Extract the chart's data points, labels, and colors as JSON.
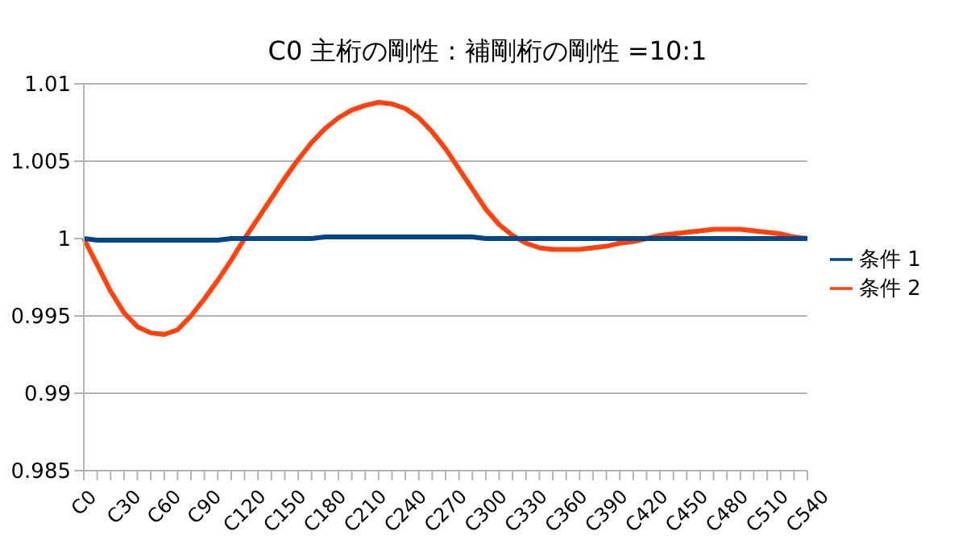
{
  "chart_data": {
    "type": "line",
    "title": "C0  主桁の剛性 : 補剛桁の剛性 =10:1",
    "categories": [
      "C0",
      null,
      null,
      "C30",
      null,
      null,
      "C60",
      null,
      null,
      "C90",
      null,
      null,
      "C120",
      null,
      null,
      "C150",
      null,
      null,
      "C180",
      null,
      null,
      "C210",
      null,
      null,
      "C240",
      null,
      null,
      "C270",
      null,
      null,
      "C300",
      null,
      null,
      "C330",
      null,
      null,
      "C360",
      null,
      null,
      "C390",
      null,
      null,
      "C420",
      null,
      null,
      "C450",
      null,
      null,
      "C480",
      null,
      null,
      "C510",
      null,
      null,
      "C540"
    ],
    "series": [
      {
        "name": "条件 1",
        "color": "#004586",
        "values": [
          1.0,
          0.9999,
          0.9999,
          0.9999,
          0.9999,
          0.9999,
          0.9999,
          0.9999,
          0.9999,
          0.9999,
          0.9999,
          1.0,
          1.0,
          1.0,
          1.0,
          1.0,
          1.0,
          1.0,
          1.0001,
          1.0001,
          1.0001,
          1.0001,
          1.0001,
          1.0001,
          1.0001,
          1.0001,
          1.0001,
          1.0001,
          1.0001,
          1.0001,
          1.0,
          1.0,
          1.0,
          1.0,
          1.0,
          1.0,
          1.0,
          1.0,
          1.0,
          1.0,
          1.0,
          1.0,
          1.0,
          1.0,
          1.0,
          1.0,
          1.0,
          1.0,
          1.0,
          1.0,
          1.0,
          1.0,
          1.0,
          1.0,
          1.0
        ]
      },
      {
        "name": "条件 2",
        "color": "#ff420e",
        "values": [
          1.0,
          0.9983,
          0.9966,
          0.9952,
          0.9943,
          0.9939,
          0.9938,
          0.9941,
          0.995,
          0.9961,
          0.9973,
          0.9986,
          1.0,
          1.0013,
          1.0026,
          1.0039,
          1.0051,
          1.0062,
          1.0071,
          1.0078,
          1.0083,
          1.0086,
          1.0088,
          1.0087,
          1.0084,
          1.0078,
          1.0069,
          1.0058,
          1.0045,
          1.0032,
          1.0019,
          1.0009,
          1.0002,
          0.9997,
          0.9994,
          0.9993,
          0.9993,
          0.9993,
          0.9994,
          0.9995,
          0.9997,
          0.9998,
          1.0,
          1.0002,
          1.0003,
          1.0004,
          1.0005,
          1.0006,
          1.0006,
          1.0006,
          1.0005,
          1.0004,
          1.0003,
          1.0001,
          1.0
        ]
      }
    ],
    "ylim": [
      0.985,
      1.01
    ],
    "yticks": [
      0.985,
      0.99,
      0.995,
      1,
      1.005,
      1.01
    ],
    "grid": "y",
    "legend": "right",
    "marker": "none",
    "line_style": "solid"
  }
}
